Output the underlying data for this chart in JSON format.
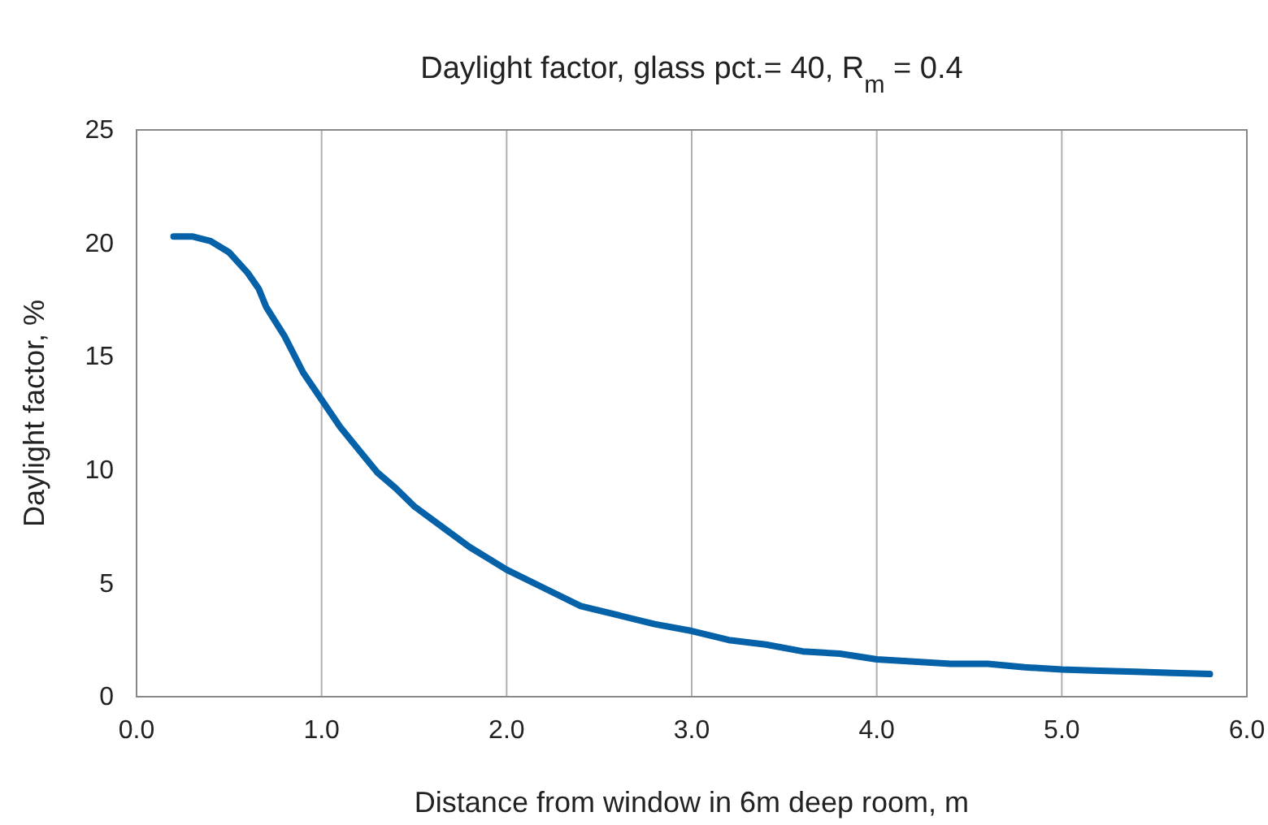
{
  "chart_data": {
    "type": "line",
    "title": "Daylight factor, glass pct.= 40, R$_{m}$ = 0.4",
    "xlabel": "Distance from window in 6m deep room, m",
    "ylabel": "Daylight factor, %",
    "x": [
      0.2,
      0.3,
      0.4,
      0.5,
      0.6,
      0.66,
      0.7,
      0.8,
      0.9,
      1.0,
      1.1,
      1.2,
      1.3,
      1.4,
      1.5,
      1.6,
      1.7,
      1.8,
      1.9,
      2.0,
      2.2,
      2.4,
      2.6,
      2.8,
      3.0,
      3.2,
      3.4,
      3.6,
      3.8,
      4.0,
      4.2,
      4.4,
      4.6,
      4.8,
      5.0,
      5.2,
      5.4,
      5.6,
      5.8
    ],
    "series": [
      {
        "color": "#0562a8",
        "values": [
          20.3,
          20.3,
          20.1,
          19.6,
          18.7,
          18.0,
          17.2,
          15.9,
          14.3,
          13.1,
          11.9,
          10.9,
          9.9,
          9.2,
          8.4,
          7.8,
          7.2,
          6.6,
          6.1,
          5.6,
          4.8,
          4.0,
          3.6,
          3.2,
          2.9,
          2.5,
          2.3,
          2.0,
          1.9,
          1.65,
          1.55,
          1.45,
          1.45,
          1.3,
          1.2,
          1.15,
          1.1,
          1.05,
          1.0
        ]
      }
    ],
    "xlim": [
      0,
      6
    ],
    "ylim": [
      0,
      25
    ],
    "xticks": [
      {
        "value": 0,
        "label": "0.0"
      },
      {
        "value": 1,
        "label": "1.0"
      },
      {
        "value": 2,
        "label": "2.0"
      },
      {
        "value": 3,
        "label": "3.0"
      },
      {
        "value": 4,
        "label": "4.0"
      },
      {
        "value": 5,
        "label": "5.0"
      },
      {
        "value": 6,
        "label": "6.0"
      }
    ],
    "yticks": [
      0,
      5,
      10,
      15,
      20,
      25
    ],
    "grid": "x",
    "marker": "none",
    "line_style": "solid"
  }
}
